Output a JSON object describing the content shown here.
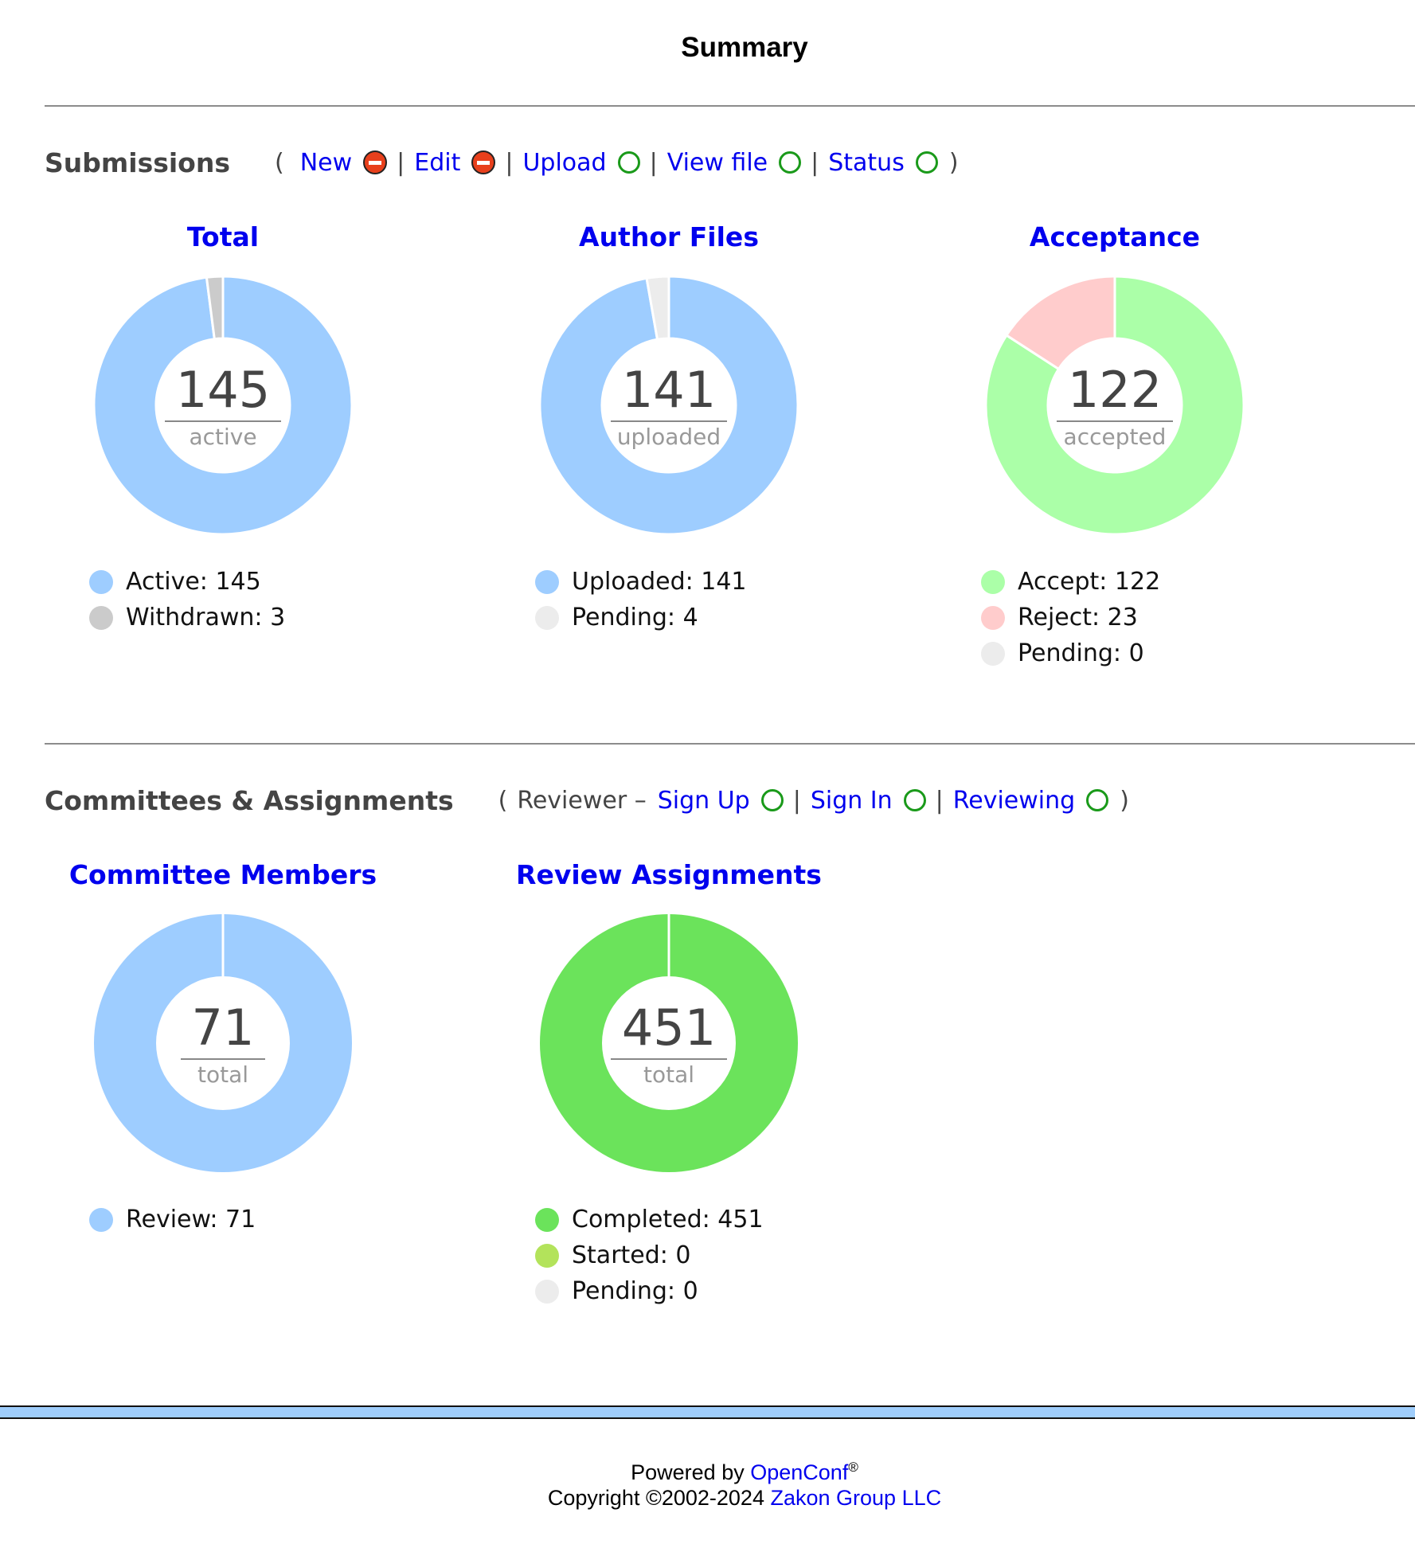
{
  "page": {
    "title": "Summary"
  },
  "submissions": {
    "title": "Submissions",
    "actions": {
      "open": "(",
      "close": ")",
      "sep": "|",
      "new": "New",
      "edit": "Edit",
      "upload": "Upload",
      "view_file": "View file",
      "status": "Status"
    },
    "charts": {
      "total": {
        "title": "Total",
        "center_value": "145",
        "center_label": "active",
        "legend": [
          {
            "label": "Active: 145",
            "color": "#9ecdff"
          },
          {
            "label": "Withdrawn: 3",
            "color": "#cbcbcb"
          }
        ]
      },
      "author_files": {
        "title": "Author Files",
        "center_value": "141",
        "center_label": "uploaded",
        "legend": [
          {
            "label": "Uploaded: 141",
            "color": "#9ecdff"
          },
          {
            "label": "Pending: 4",
            "color": "#ececec"
          }
        ]
      },
      "acceptance": {
        "title": "Acceptance",
        "center_value": "122",
        "center_label": "accepted",
        "legend": [
          {
            "label": "Accept: 122",
            "color": "#abffa8"
          },
          {
            "label": "Reject: 23",
            "color": "#ffcccc"
          },
          {
            "label": "Pending: 0",
            "color": "#ececec"
          }
        ]
      }
    }
  },
  "committees": {
    "title": "Committees & Assignments",
    "actions": {
      "open": "(",
      "close": ")",
      "sep": "|",
      "reviewer_prefix": "Reviewer –",
      "sign_up": "Sign Up",
      "sign_in": "Sign In",
      "reviewing": "Reviewing"
    },
    "charts": {
      "committee_members": {
        "title": "Committee Members",
        "center_value": "71",
        "center_label": "total",
        "legend": [
          {
            "label": "Review: 71",
            "color": "#9ecdff"
          }
        ]
      },
      "review_assignments": {
        "title": "Review Assignments",
        "center_value": "451",
        "center_label": "total",
        "legend": [
          {
            "label": "Completed: 451",
            "color": "#6be35b"
          },
          {
            "label": "Started: 0",
            "color": "#b3e35b"
          },
          {
            "label": "Pending: 0",
            "color": "#ececec"
          }
        ]
      }
    }
  },
  "footer": {
    "powered_by": "Powered by",
    "product_link": "OpenConf",
    "registered": "®",
    "copyright": "Copyright ©2002-2024",
    "company_link": "Zakon Group LLC"
  },
  "chart_data": [
    {
      "type": "pie",
      "title": "Total",
      "categories": [
        "Active",
        "Withdrawn"
      ],
      "values": [
        145,
        3
      ],
      "colors": [
        "#9ecdff",
        "#cbcbcb"
      ]
    },
    {
      "type": "pie",
      "title": "Author Files",
      "categories": [
        "Uploaded",
        "Pending"
      ],
      "values": [
        141,
        4
      ],
      "colors": [
        "#9ecdff",
        "#ececec"
      ]
    },
    {
      "type": "pie",
      "title": "Acceptance",
      "categories": [
        "Accept",
        "Reject",
        "Pending"
      ],
      "values": [
        122,
        23,
        0
      ],
      "colors": [
        "#abffa8",
        "#ffcccc",
        "#ececec"
      ]
    },
    {
      "type": "pie",
      "title": "Committee Members",
      "categories": [
        "Review"
      ],
      "values": [
        71
      ],
      "colors": [
        "#9ecdff"
      ]
    },
    {
      "type": "pie",
      "title": "Review Assignments",
      "categories": [
        "Completed",
        "Started",
        "Pending"
      ],
      "values": [
        451,
        0,
        0
      ],
      "colors": [
        "#6be35b",
        "#b3e35b",
        "#ececec"
      ]
    }
  ]
}
